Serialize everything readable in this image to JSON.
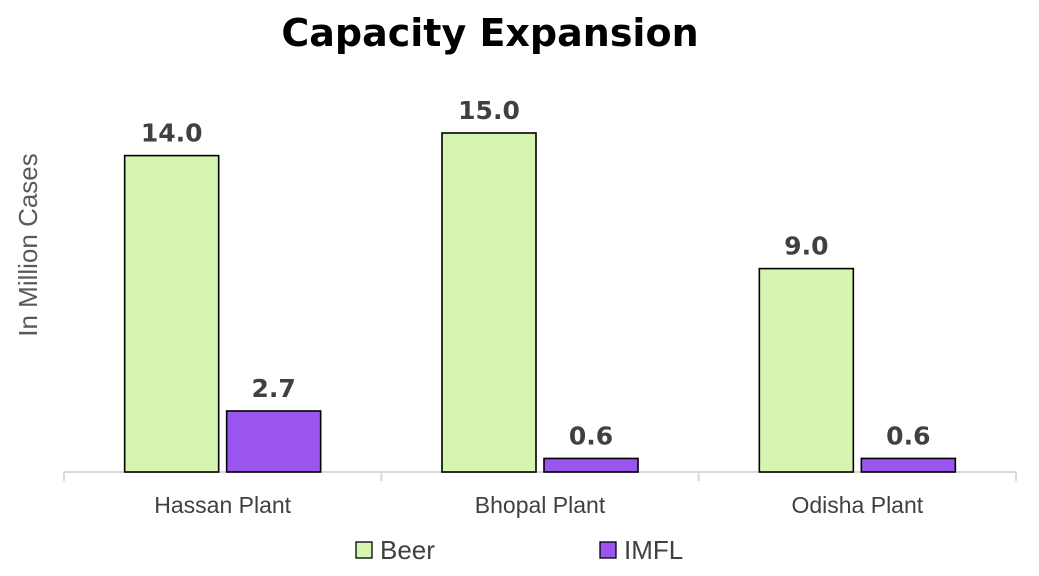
{
  "chart_data": {
    "type": "bar",
    "title": "Capacity Expansion",
    "xlabel": "",
    "ylabel": "In Million Cases",
    "categories": [
      "Hassan Plant",
      "Bhopal Plant",
      "Odisha Plant"
    ],
    "series": [
      {
        "name": "Beer",
        "color": "#d6f5b0",
        "values": [
          14.0,
          15.0,
          9.0
        ],
        "labels": [
          "14.0",
          "15.0",
          "9.0"
        ]
      },
      {
        "name": "IMFL",
        "color": "#9a55ee",
        "values": [
          2.7,
          0.6,
          0.6
        ],
        "labels": [
          "2.7",
          "0.6",
          "0.6"
        ]
      }
    ],
    "ylim": [
      0,
      15.5
    ],
    "grid": false,
    "legend": "bottom"
  }
}
